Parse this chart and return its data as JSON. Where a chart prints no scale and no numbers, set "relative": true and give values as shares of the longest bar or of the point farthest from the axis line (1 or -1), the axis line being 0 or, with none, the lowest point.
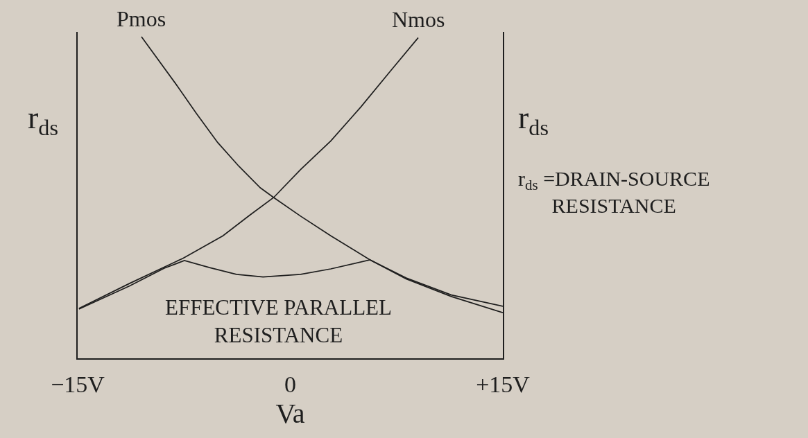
{
  "chart_data": {
    "type": "line",
    "xlabel": "Va",
    "ylabel": "r$_{ds}$",
    "y2label": "r$_{ds}$",
    "annotations": [
      "r$_{ds}$ =DRAIN-SOURCE\nRESISTANCE"
    ],
    "xlim": [
      -15,
      15
    ],
    "xticks": [
      {
        "value": -15,
        "label": "−15V"
      },
      0,
      {
        "value": 15,
        "label": "+15V"
      }
    ],
    "relative": true,
    "legend": false,
    "line_style": "solid",
    "series": [
      {
        "name": "Pmos",
        "color": "#1e1e1e",
        "x": [
          -10.5,
          -7.94,
          -6.63,
          -5.12,
          -3.62,
          -2.11,
          -1.17,
          0.73,
          2.86,
          5.63,
          8.18,
          11.37,
          15
        ],
        "values": [
          1.0,
          0.845,
          0.762,
          0.671,
          0.597,
          0.53,
          0.5,
          0.442,
          0.381,
          0.306,
          0.25,
          0.197,
          0.162
        ]
      },
      {
        "name": "Nmos",
        "color": "#1e1e1e",
        "x": [
          -14.91,
          -11.33,
          -7.57,
          -4.75,
          -2.86,
          -1.17,
          0.73,
          2.86,
          4.99,
          7.12,
          9.03
        ],
        "values": [
          0.155,
          0.233,
          0.311,
          0.381,
          0.445,
          0.5,
          0.587,
          0.676,
          0.782,
          0.896,
          0.997
        ]
      },
      {
        "name": "EFFECTIVE PARALLEL\nRESISTANCE",
        "color": "#1e1e1e",
        "x": [
          -14.91,
          -11.33,
          -8.89,
          -7.47,
          -5.69,
          -3.8,
          -1.92,
          0.73,
          2.86,
          5.63,
          8.18,
          11.37,
          15
        ],
        "values": [
          0.153,
          0.225,
          0.28,
          0.304,
          0.282,
          0.261,
          0.253,
          0.261,
          0.278,
          0.306,
          0.247,
          0.192,
          0.142
        ]
      }
    ]
  }
}
